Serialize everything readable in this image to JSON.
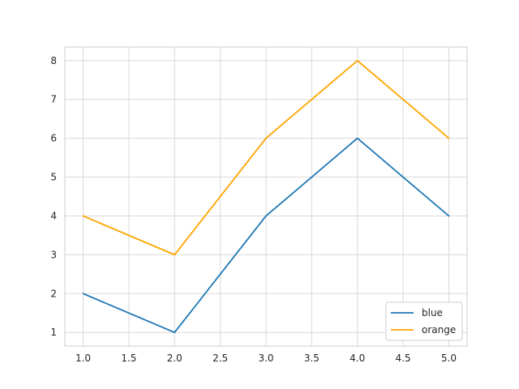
{
  "chart_data": {
    "type": "line",
    "title": "",
    "xlabel": "",
    "ylabel": "",
    "x": [
      1,
      2,
      3,
      4,
      5
    ],
    "series": [
      {
        "name": "blue",
        "values": [
          2,
          1,
          4,
          6,
          4
        ],
        "color": "#1f77b4"
      },
      {
        "name": "orange",
        "values": [
          4,
          3,
          6,
          8,
          6
        ],
        "color": "#ffa500"
      }
    ],
    "xlim": [
      0.8,
      5.2
    ],
    "ylim": [
      0.65,
      8.35
    ],
    "xticks": [
      "1.0",
      "1.5",
      "2.0",
      "2.5",
      "3.0",
      "3.5",
      "4.0",
      "4.5",
      "5.0"
    ],
    "yticks": [
      "1",
      "2",
      "3",
      "4",
      "5",
      "6",
      "7",
      "8"
    ],
    "grid": true,
    "legend_position": "lower-right"
  }
}
